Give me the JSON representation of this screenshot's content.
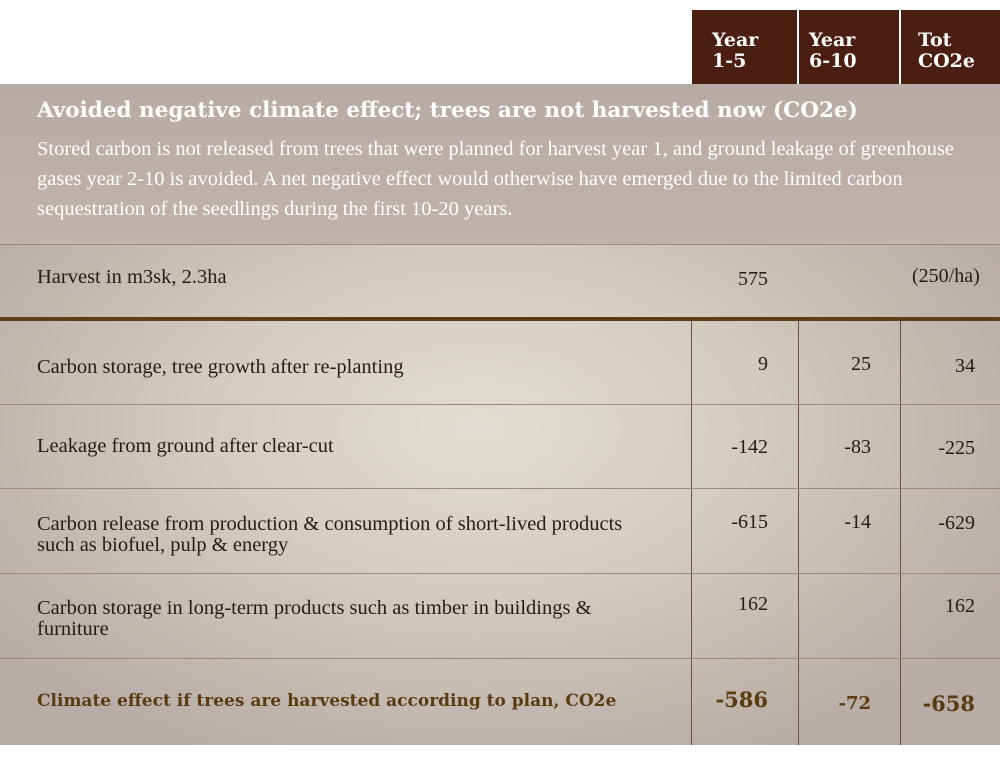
{
  "header": {
    "col1": "Year 1-5",
    "col2": "Year 6-10",
    "col3": "Tot CO2e"
  },
  "intro": {
    "title": "Avoided negative climate effect; trees are not harvested now (CO2e)",
    "text": "Stored carbon is not released from trees that were planned for harvest year 1, and ground leakage of greenhouse gases year 2-10 is avoided. A net negative effect would otherwise have emerged due to the limited carbon sequestration of the seedlings during the first 10-20 years."
  },
  "harvest": {
    "label": "Harvest in m3sk, 2.3ha",
    "value": "575",
    "per_ha": "(250/ha)"
  },
  "rows": [
    {
      "label": "Carbon storage, tree growth after re-planting",
      "y1_5": "9",
      "y6_10": "25",
      "total": "34"
    },
    {
      "label": "Leakage from ground after clear-cut",
      "y1_5": "-142",
      "y6_10": "-83",
      "total": "-225"
    },
    {
      "label": "Carbon release from production & consumption of short-lived products such as biofuel, pulp & energy",
      "y1_5": "-615",
      "y6_10": "-14",
      "total": "-629"
    },
    {
      "label": "Carbon storage in long-term products such as timber in buildings & furniture",
      "y1_5": "162",
      "y6_10": "",
      "total": "162"
    }
  ],
  "total": {
    "label": "Climate effect if trees are harvested according to plan, CO2e",
    "y1_5": "-586",
    "y6_10": "-72",
    "total": "-658"
  },
  "colors": {
    "header_bg": "#4a1e10",
    "total_text": "#5a3b10",
    "rule": "#5c3e12"
  }
}
